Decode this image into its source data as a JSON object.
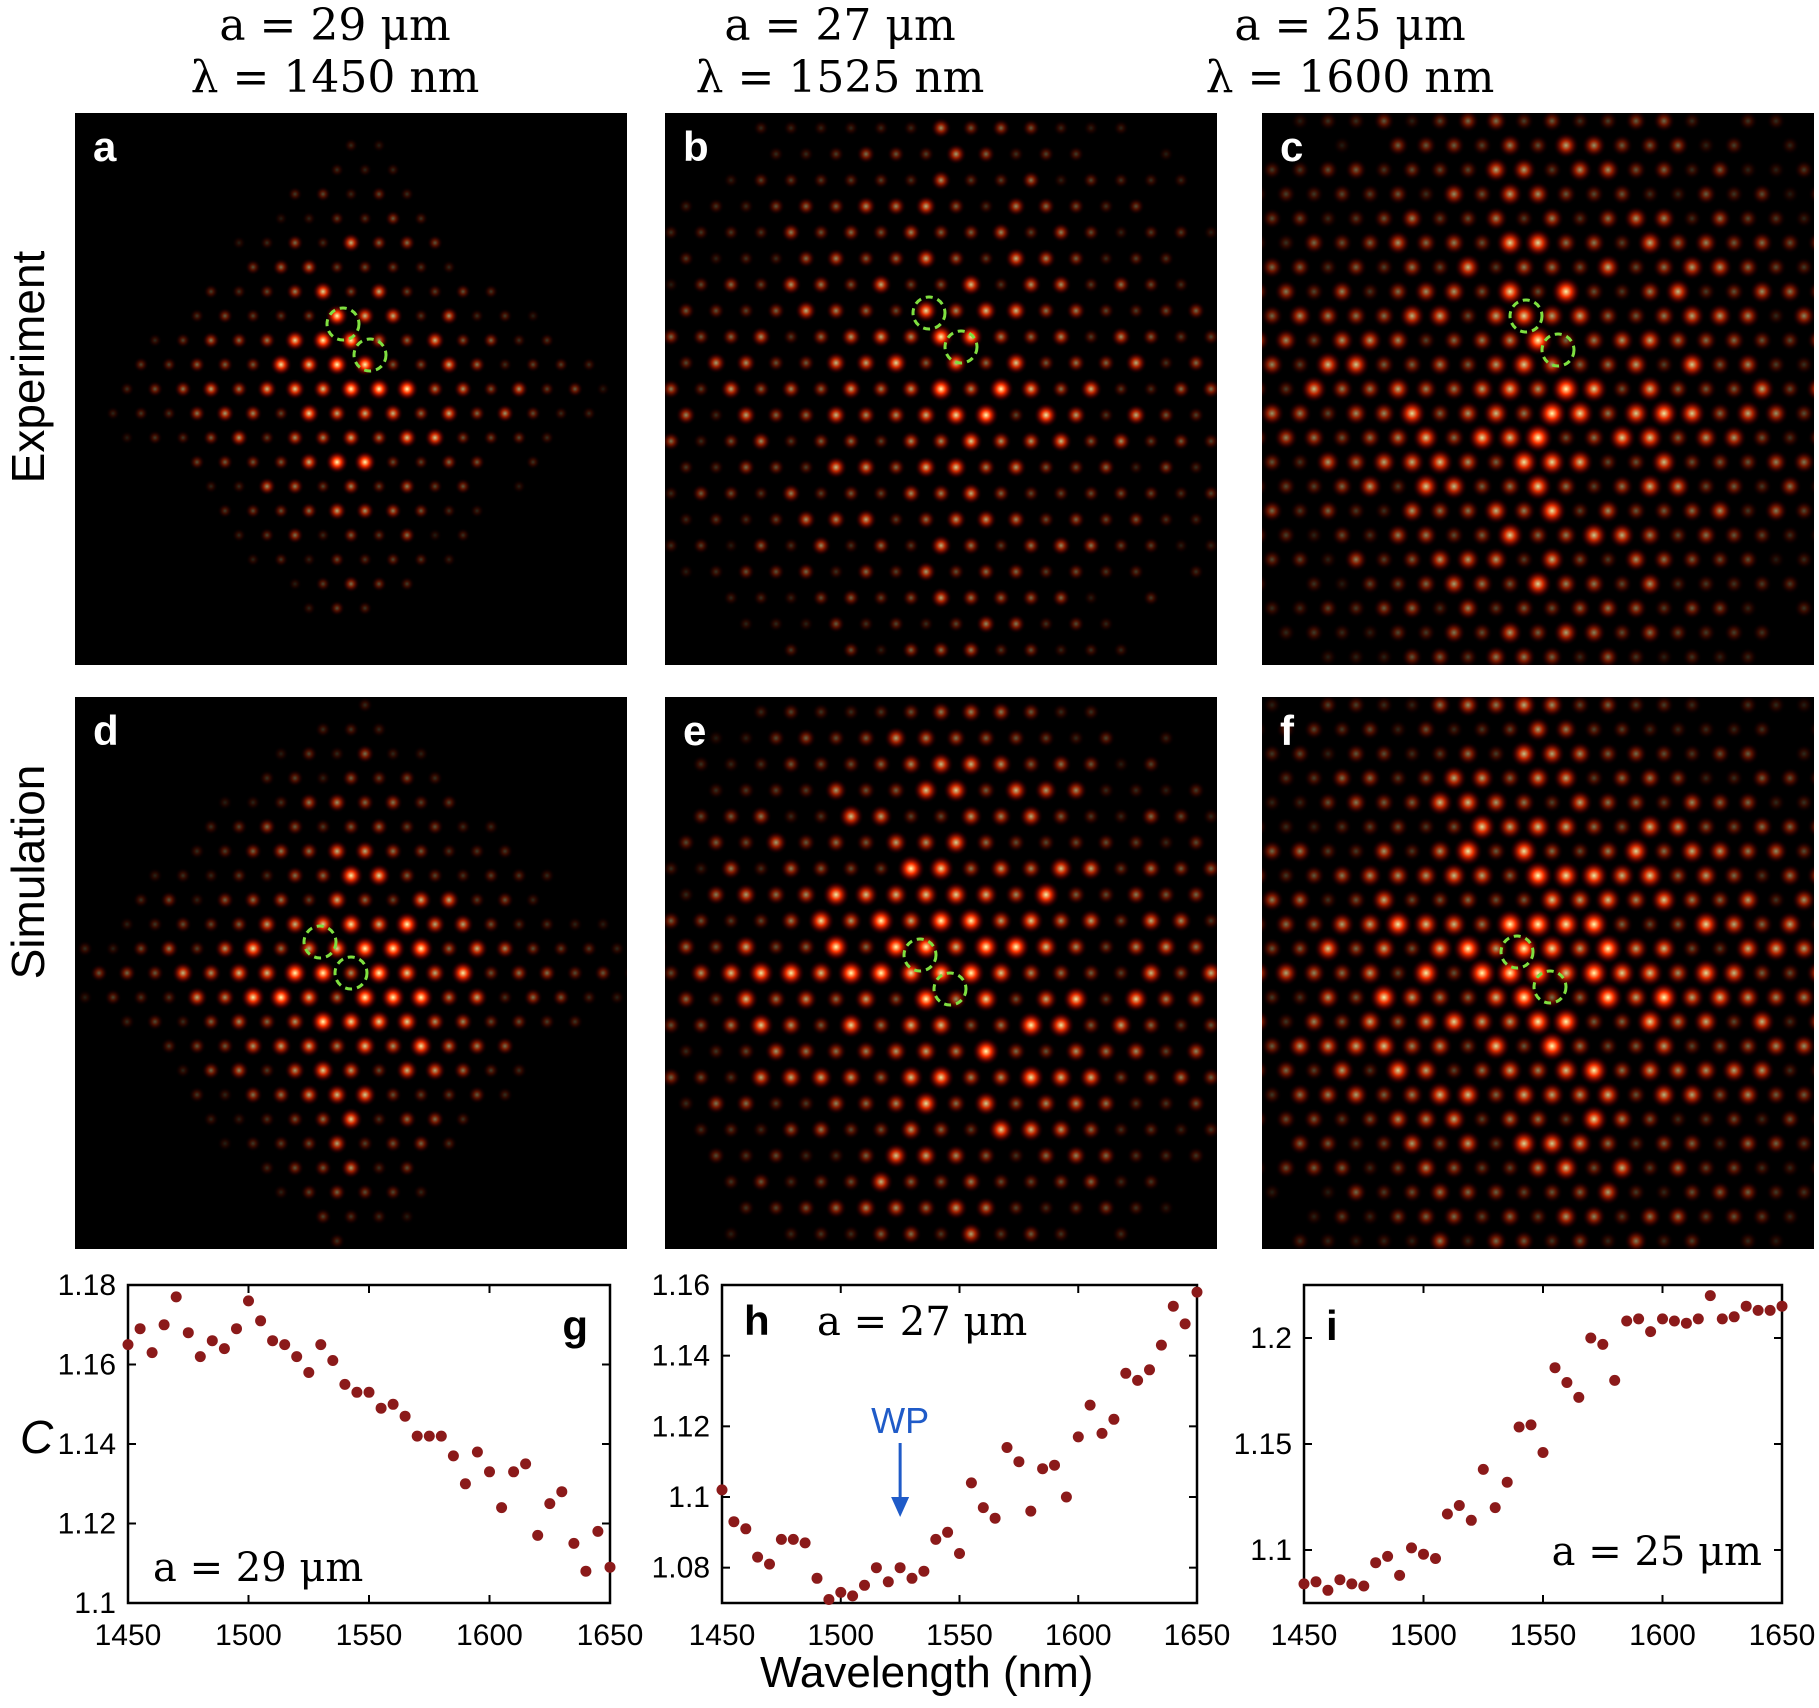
{
  "headers": [
    {
      "a": "a = 29 μm",
      "lambda": "λ = 1450 nm"
    },
    {
      "a": "a = 27 μm",
      "lambda": "λ = 1525 nm"
    },
    {
      "a": "a = 25 μm",
      "lambda": "λ = 1600 nm"
    }
  ],
  "row_labels": {
    "top": "Experiment",
    "bottom": "Simulation"
  },
  "panels": {
    "a": "a",
    "b": "b",
    "c": "c",
    "d": "d",
    "e": "e",
    "f": "f"
  },
  "colors": {
    "spot_core": "#ffffb0",
    "spot_mid": "#ff3300",
    "spot_edge": "#6a0000",
    "marker_circle": "#7fe040",
    "data_point": "#8b1a1a",
    "arrow": "#1f5bc8"
  },
  "x_axis_label": "Wavelength (nm)",
  "y_axis_label": "C",
  "chart_data": [
    {
      "type": "scatter",
      "panel_letter": "g",
      "annotation": "a = 29 μm",
      "xlim": [
        1450,
        1650
      ],
      "ylim": [
        1.1,
        1.18
      ],
      "xticks": [
        "1450",
        "1500",
        "1550",
        "1600",
        "1650"
      ],
      "yticks": [
        "1.1",
        "1.12",
        "1.14",
        "1.16",
        "1.18"
      ],
      "x": [
        1450,
        1455,
        1460,
        1465,
        1470,
        1475,
        1480,
        1485,
        1490,
        1495,
        1500,
        1505,
        1510,
        1515,
        1520,
        1525,
        1530,
        1535,
        1540,
        1545,
        1550,
        1555,
        1560,
        1565,
        1570,
        1575,
        1580,
        1585,
        1590,
        1595,
        1600,
        1605,
        1610,
        1615,
        1620,
        1625,
        1630,
        1635,
        1640,
        1645,
        1650
      ],
      "y": [
        1.165,
        1.169,
        1.163,
        1.17,
        1.177,
        1.168,
        1.162,
        1.166,
        1.164,
        1.169,
        1.176,
        1.171,
        1.166,
        1.165,
        1.162,
        1.158,
        1.165,
        1.161,
        1.155,
        1.153,
        1.153,
        1.149,
        1.15,
        1.147,
        1.142,
        1.142,
        1.142,
        1.137,
        1.13,
        1.138,
        1.133,
        1.124,
        1.133,
        1.135,
        1.117,
        1.125,
        1.128,
        1.115,
        1.108,
        1.118,
        1.109
      ]
    },
    {
      "type": "scatter",
      "panel_letter": "h",
      "annotation": "a = 27 μm",
      "arrow_label": "WP",
      "arrow_x": 1525,
      "xlim": [
        1450,
        1650
      ],
      "ylim": [
        1.07,
        1.16
      ],
      "xticks": [
        "1450",
        "1500",
        "1550",
        "1600",
        "1650"
      ],
      "yticks": [
        "1.08",
        "1.1",
        "1.12",
        "1.14",
        "1.16"
      ],
      "x": [
        1450,
        1455,
        1460,
        1465,
        1470,
        1475,
        1480,
        1485,
        1490,
        1495,
        1500,
        1505,
        1510,
        1515,
        1520,
        1525,
        1530,
        1535,
        1540,
        1545,
        1550,
        1555,
        1560,
        1565,
        1570,
        1575,
        1580,
        1585,
        1590,
        1595,
        1600,
        1605,
        1610,
        1615,
        1620,
        1625,
        1630,
        1635,
        1640,
        1645,
        1650
      ],
      "y": [
        1.102,
        1.093,
        1.091,
        1.083,
        1.081,
        1.088,
        1.088,
        1.087,
        1.077,
        1.071,
        1.073,
        1.072,
        1.075,
        1.08,
        1.076,
        1.08,
        1.077,
        1.079,
        1.088,
        1.09,
        1.084,
        1.104,
        1.097,
        1.094,
        1.114,
        1.11,
        1.096,
        1.108,
        1.109,
        1.1,
        1.117,
        1.126,
        1.118,
        1.122,
        1.135,
        1.133,
        1.136,
        1.143,
        1.154,
        1.149,
        1.158
      ]
    },
    {
      "type": "scatter",
      "panel_letter": "i",
      "annotation": "a = 25 μm",
      "xlim": [
        1450,
        1650
      ],
      "ylim": [
        1.075,
        1.225
      ],
      "xticks": [
        "1450",
        "1500",
        "1550",
        "1600",
        "1650"
      ],
      "yticks": [
        "1.1",
        "1.15",
        "1.2"
      ],
      "x": [
        1450,
        1455,
        1460,
        1465,
        1470,
        1475,
        1480,
        1485,
        1490,
        1495,
        1500,
        1505,
        1510,
        1515,
        1520,
        1525,
        1530,
        1535,
        1540,
        1545,
        1550,
        1555,
        1560,
        1565,
        1570,
        1575,
        1580,
        1585,
        1590,
        1595,
        1600,
        1605,
        1610,
        1615,
        1620,
        1625,
        1630,
        1635,
        1640,
        1645,
        1650
      ],
      "y": [
        1.084,
        1.085,
        1.081,
        1.086,
        1.084,
        1.083,
        1.094,
        1.097,
        1.088,
        1.101,
        1.098,
        1.096,
        1.117,
        1.121,
        1.114,
        1.138,
        1.12,
        1.132,
        1.158,
        1.159,
        1.146,
        1.186,
        1.179,
        1.172,
        1.2,
        1.197,
        1.18,
        1.208,
        1.209,
        1.203,
        1.209,
        1.208,
        1.207,
        1.209,
        1.22,
        1.209,
        1.21,
        1.215,
        1.213,
        1.213,
        1.215
      ]
    }
  ]
}
